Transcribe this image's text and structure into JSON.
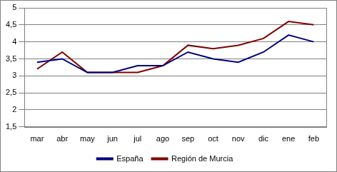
{
  "chart_data": {
    "type": "line",
    "categories": [
      "mar",
      "abr",
      "may",
      "jun",
      "jul",
      "ago",
      "sep",
      "oct",
      "nov",
      "dic",
      "ene",
      "feb"
    ],
    "series": [
      {
        "name": "España",
        "color": "#000080",
        "values": [
          3.4,
          3.5,
          3.1,
          3.1,
          3.3,
          3.3,
          3.7,
          3.5,
          3.4,
          3.7,
          4.2,
          4.0
        ]
      },
      {
        "name": "Región de Murcia",
        "color": "#800000",
        "values": [
          3.2,
          3.7,
          3.1,
          3.1,
          3.1,
          3.3,
          3.9,
          3.8,
          3.9,
          4.1,
          4.6,
          4.5
        ]
      }
    ],
    "ylim": [
      1.5,
      5
    ],
    "yticks": [
      {
        "value": 1.5,
        "label": "1,5"
      },
      2,
      {
        "value": 2.5,
        "label": "2,5"
      },
      3,
      {
        "value": 3.5,
        "label": "3,5"
      },
      4,
      {
        "value": 4.5,
        "label": "4,5"
      },
      5
    ],
    "grid": true,
    "legend": "bottom"
  }
}
